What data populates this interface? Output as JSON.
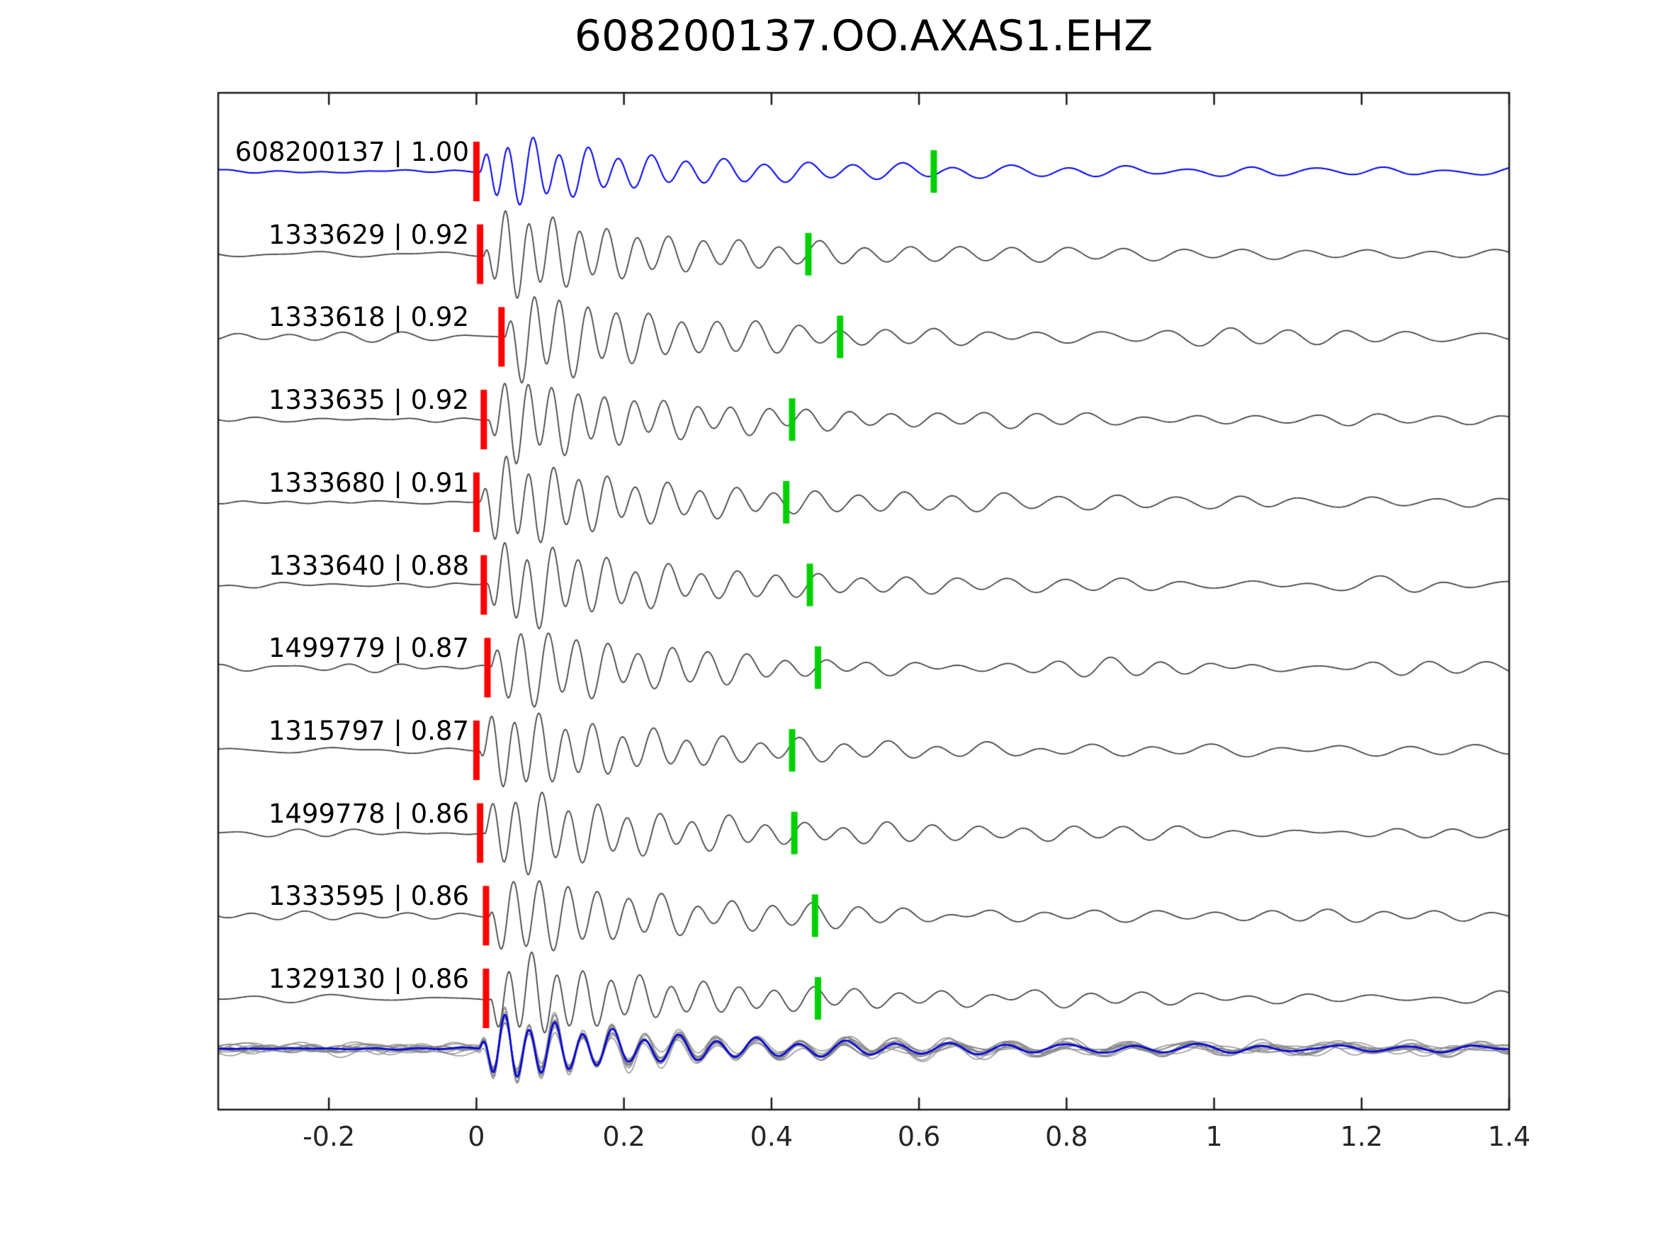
{
  "page": {
    "background": "#ffffff"
  },
  "chart_data": {
    "type": "line",
    "title": "608200137.OO.AXAS1.EHZ",
    "xlabel": "",
    "ylabel": "",
    "xlim": [
      -0.35,
      1.4
    ],
    "x_ticks": [
      -0.2,
      0,
      0.2,
      0.4,
      0.6,
      0.8,
      1,
      1.2,
      1.4
    ],
    "x_tick_labels": [
      "-0.2",
      "0",
      "0.2",
      "0.4",
      "0.6",
      "0.8",
      "1",
      "1.2",
      "1.4"
    ],
    "grid": false,
    "legend": "none",
    "colors": {
      "template_trace": "#0000f0",
      "match_trace": "#3c3c3c",
      "red_pick": "#ff0000",
      "green_pick": "#00d000",
      "stack_member": "#7f7f7f",
      "stack_mean": "#0000e0",
      "axes_box": "#1a1a1a"
    },
    "traces": [
      {
        "id": "608200137",
        "correlation": 1.0,
        "label": "608200137 | 1.00",
        "is_template": true,
        "red_pick_t": 0.0,
        "green_pick_t": 0.62
      },
      {
        "id": "1333629",
        "correlation": 0.92,
        "label": "1333629 | 0.92",
        "is_template": false,
        "red_pick_t": 0.005,
        "green_pick_t": 0.45
      },
      {
        "id": "1333618",
        "correlation": 0.92,
        "label": "1333618 | 0.92",
        "is_template": false,
        "red_pick_t": 0.034,
        "green_pick_t": 0.493
      },
      {
        "id": "1333635",
        "correlation": 0.92,
        "label": "1333635 | 0.92",
        "is_template": false,
        "red_pick_t": 0.01,
        "green_pick_t": 0.428
      },
      {
        "id": "1333680",
        "correlation": 0.91,
        "label": "1333680 | 0.91",
        "is_template": false,
        "red_pick_t": 0.0,
        "green_pick_t": 0.42
      },
      {
        "id": "1333640",
        "correlation": 0.88,
        "label": "1333640 | 0.88",
        "is_template": false,
        "red_pick_t": 0.01,
        "green_pick_t": 0.452
      },
      {
        "id": "1499779",
        "correlation": 0.87,
        "label": "1499779 | 0.87",
        "is_template": false,
        "red_pick_t": 0.015,
        "green_pick_t": 0.463
      },
      {
        "id": "1315797",
        "correlation": 0.87,
        "label": "1315797 | 0.87",
        "is_template": false,
        "red_pick_t": 0.0,
        "green_pick_t": 0.428
      },
      {
        "id": "1499778",
        "correlation": 0.86,
        "label": "1499778 | 0.86",
        "is_template": false,
        "red_pick_t": 0.005,
        "green_pick_t": 0.431
      },
      {
        "id": "1333595",
        "correlation": 0.86,
        "label": "1333595 | 0.86",
        "is_template": false,
        "red_pick_t": 0.013,
        "green_pick_t": 0.459
      },
      {
        "id": "1329130",
        "correlation": 0.86,
        "label": "1329130 | 0.86",
        "is_template": false,
        "red_pick_t": 0.013,
        "green_pick_t": 0.463
      }
    ],
    "stack": {
      "position": "bottom",
      "member_count": 10,
      "member_color": "#7f7f7f",
      "mean_color": "#0000e0",
      "description": "overlay of aligned matched traces with blue mean trace"
    }
  }
}
